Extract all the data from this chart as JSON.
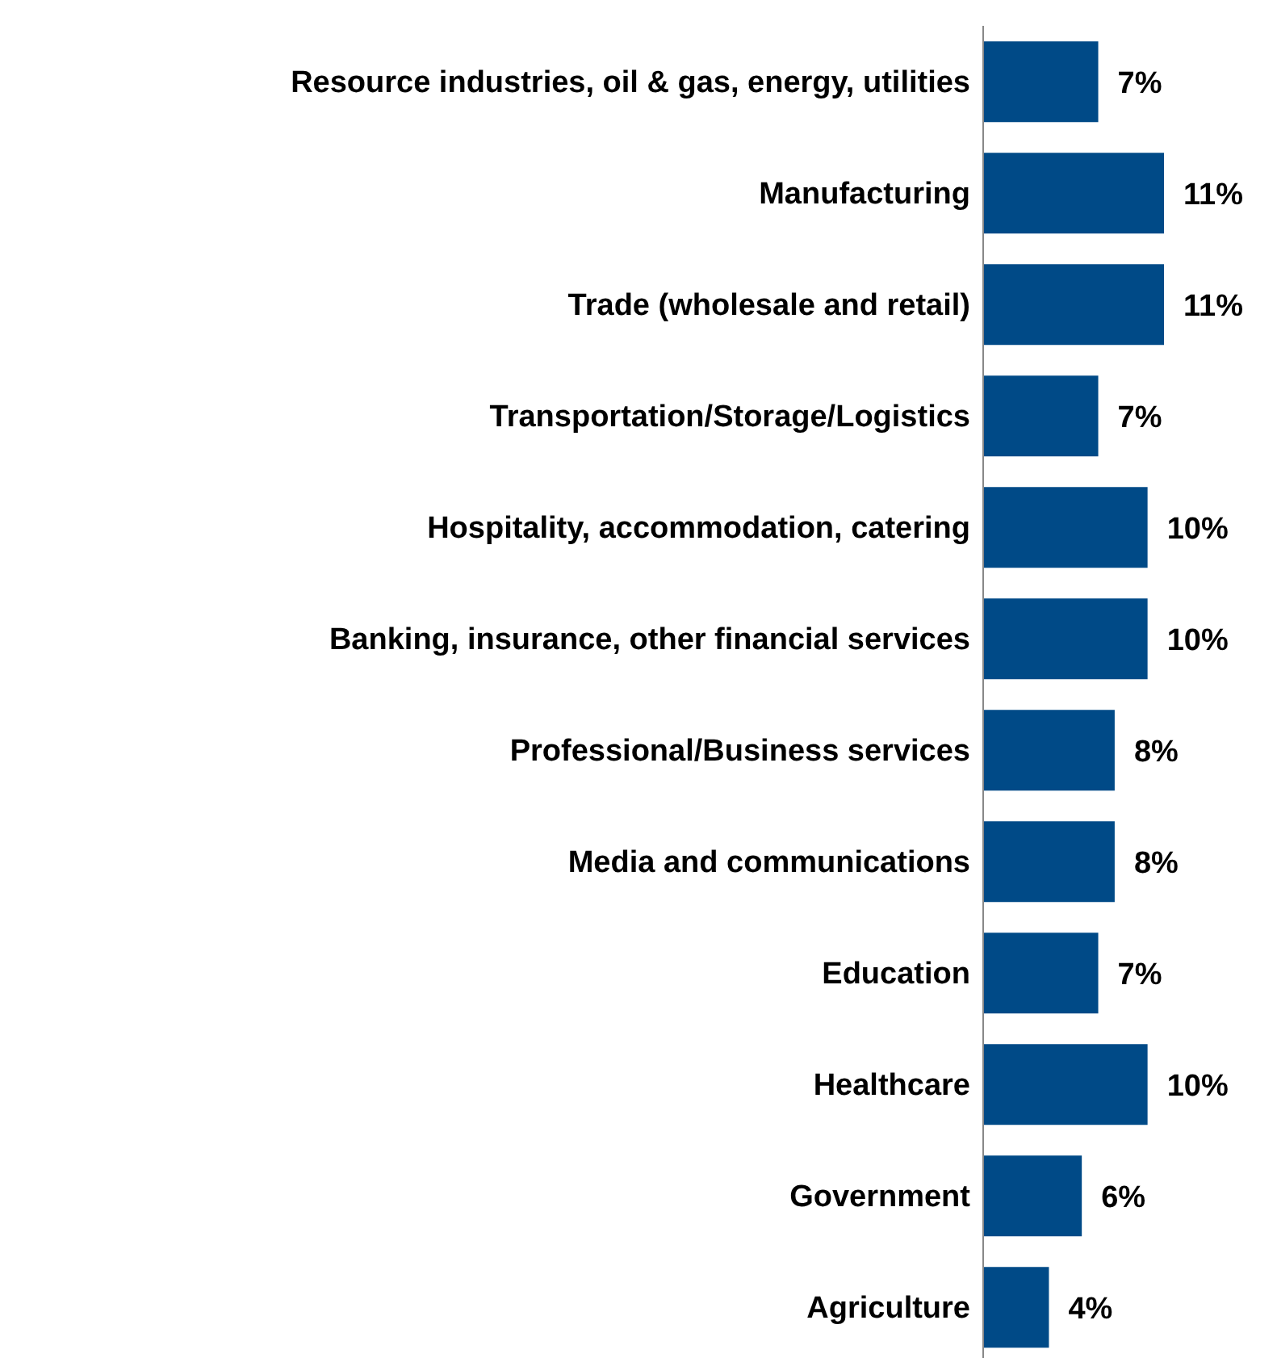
{
  "chart_data": {
    "type": "bar",
    "orientation": "horizontal",
    "categories": [
      "Resource industries, oil & gas, energy, utilities",
      "Manufacturing",
      "Trade (wholesale and retail)",
      "Transportation/Storage/Logistics",
      "Hospitality, accommodation, catering",
      "Banking, insurance, other financial services",
      "Professional/Business services",
      "Media and communications",
      "Education",
      "Healthcare",
      "Government",
      "Agriculture"
    ],
    "values": [
      7,
      11,
      11,
      7,
      10,
      10,
      8,
      8,
      7,
      10,
      6,
      4
    ],
    "value_labels": [
      "7%",
      "11%",
      "11%",
      "7%",
      "10%",
      "10%",
      "8%",
      "8%",
      "7%",
      "10%",
      "6%",
      "4%"
    ],
    "color": "#004a87",
    "tick_labels": "y"
  }
}
